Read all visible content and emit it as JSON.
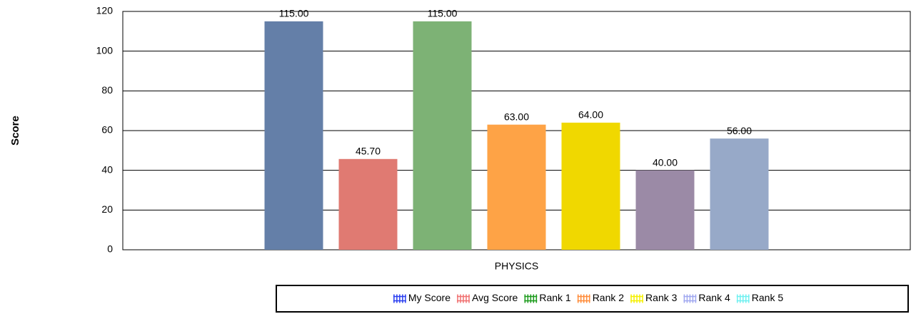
{
  "chart_data": {
    "type": "bar",
    "y_label": "Score",
    "categories": [
      "PHYSICS"
    ],
    "series": [
      {
        "name": "My Score",
        "color": "#647fa8",
        "legend_color": "#2a3ff0",
        "values": [
          115
        ],
        "value_labels": [
          "115.00"
        ]
      },
      {
        "name": "Avg Score",
        "color": "#e07a72",
        "legend_color": "#f07070",
        "values": [
          45.7
        ],
        "value_labels": [
          "45.70"
        ]
      },
      {
        "name": "Rank 1",
        "color": "#7db275",
        "legend_color": "#1a9a1a",
        "values": [
          115
        ],
        "value_labels": [
          "115.00"
        ]
      },
      {
        "name": "Rank 2",
        "color": "#fea346",
        "legend_color": "#ff8c3a",
        "values": [
          63
        ],
        "value_labels": [
          "63.00"
        ]
      },
      {
        "name": "Rank 3",
        "color": "#f0d800",
        "legend_color": "#f5f000",
        "values": [
          64
        ],
        "value_labels": [
          "64.00"
        ]
      },
      {
        "name": "Rank 4",
        "color": "#9b8aa6",
        "legend_color": "#a0a8f0",
        "values": [
          40
        ],
        "value_labels": [
          "40.00"
        ]
      },
      {
        "name": "Rank 5",
        "color": "#97a9c8",
        "legend_color": "#70f0f0",
        "values": [
          56
        ],
        "value_labels": [
          "56.00"
        ]
      }
    ],
    "ylim": [
      0,
      120
    ],
    "yticks": [
      0,
      20,
      40,
      60,
      80,
      100,
      120
    ],
    "grid": true
  }
}
